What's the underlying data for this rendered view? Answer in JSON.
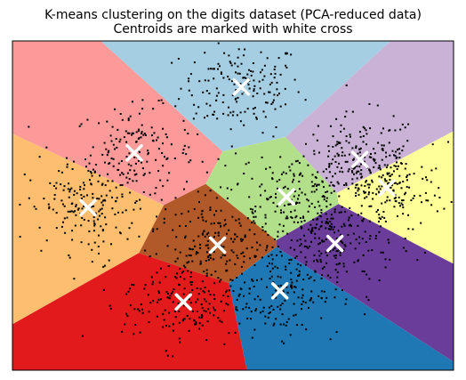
{
  "chart_data": {
    "type": "scatter",
    "title_lines": [
      "K-means clustering on the digits dataset (PCA-reduced data)",
      "Centroids are marked with white cross"
    ],
    "xlabel": "",
    "ylabel": "",
    "xlim": [
      -40,
      40
    ],
    "ylim": [
      -40,
      40
    ],
    "ticks_visible": false,
    "grid": false,
    "background": "voronoi-regions",
    "centroid_marker": {
      "shape": "x",
      "color": "#ffffff"
    },
    "point_marker": {
      "shape": "dot",
      "color": "#000000"
    },
    "centroids": [
      {
        "region_color": "#a6cee3",
        "x": 1.5,
        "y": 28.8
      },
      {
        "region_color": "#fb9a99",
        "x": -17.9,
        "y": 12.8
      },
      {
        "region_color": "#cab2d6",
        "x": 23.0,
        "y": 11.2
      },
      {
        "region_color": "#ffff99",
        "x": 27.9,
        "y": 4.3
      },
      {
        "region_color": "#b2df8a",
        "x": 9.7,
        "y": 2.1
      },
      {
        "region_color": "#fdbf6f",
        "x": -26.3,
        "y": -0.5
      },
      {
        "region_color": "#b15928",
        "x": -2.8,
        "y": -9.6
      },
      {
        "region_color": "#6a3d9a",
        "x": 18.5,
        "y": -9.2
      },
      {
        "region_color": "#1f78b4",
        "x": 8.5,
        "y": -20.7
      },
      {
        "region_color": "#e31a1c",
        "x": -9.0,
        "y": -23.4
      }
    ]
  }
}
